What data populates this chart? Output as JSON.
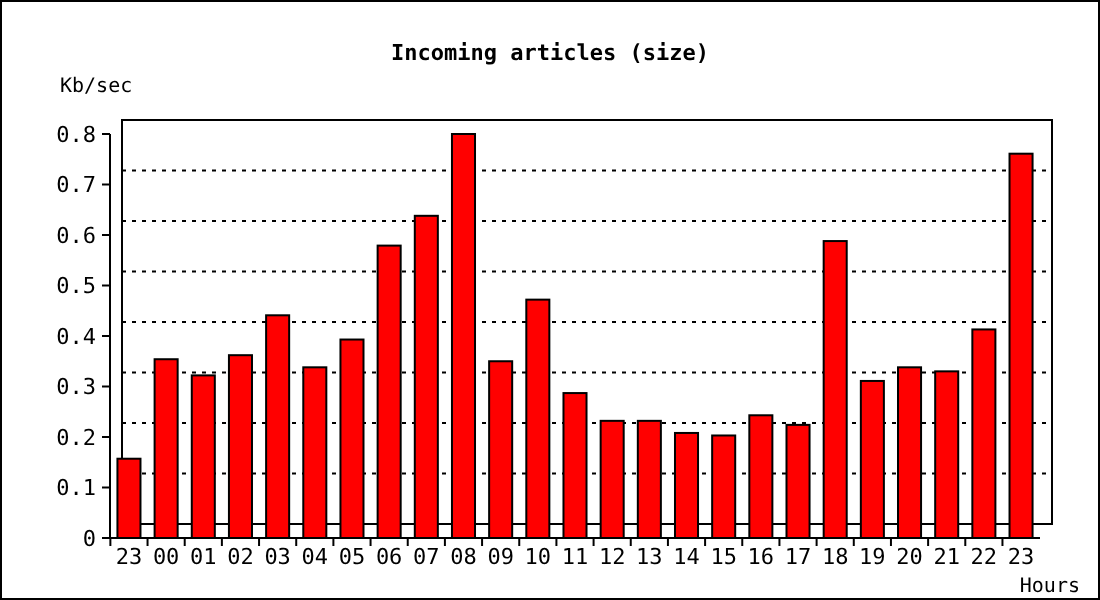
{
  "chart_data": {
    "type": "bar",
    "title": "Incoming articles (size)",
    "xlabel": "Hours",
    "ylabel": "Kb/sec",
    "categories": [
      "23",
      "00",
      "01",
      "02",
      "03",
      "04",
      "05",
      "06",
      "07",
      "08",
      "09",
      "10",
      "11",
      "12",
      "13",
      "14",
      "15",
      "16",
      "17",
      "18",
      "19",
      "20",
      "21",
      "22",
      "23"
    ],
    "values": [
      0.157,
      0.354,
      0.322,
      0.362,
      0.441,
      0.338,
      0.393,
      0.579,
      0.638,
      0.8,
      0.35,
      0.472,
      0.287,
      0.232,
      0.232,
      0.208,
      0.203,
      0.243,
      0.224,
      0.588,
      0.311,
      0.338,
      0.33,
      0.413,
      0.761
    ],
    "color": "#ff0000",
    "ylim": [
      0,
      0.8
    ],
    "yticks": [
      0,
      0.1,
      0.2,
      0.3,
      0.4,
      0.5,
      0.6,
      0.7,
      0.8
    ],
    "grid": "y"
  }
}
